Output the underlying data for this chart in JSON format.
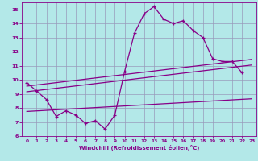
{
  "title": "",
  "xlabel": "Windchill (Refroidissement éolien,°C)",
  "background_color": "#b3e8e8",
  "line_color": "#880088",
  "xlim": [
    -0.5,
    23.5
  ],
  "ylim": [
    6,
    15.5
  ],
  "yticks": [
    6,
    7,
    8,
    9,
    10,
    11,
    12,
    13,
    14,
    15
  ],
  "xticks": [
    0,
    1,
    2,
    3,
    4,
    5,
    6,
    7,
    8,
    9,
    10,
    11,
    12,
    13,
    14,
    15,
    16,
    17,
    18,
    19,
    20,
    21,
    22,
    23
  ],
  "curve_x": [
    0,
    1,
    2,
    3,
    4,
    5,
    6,
    7,
    8,
    9,
    10,
    11,
    12,
    13,
    14,
    15,
    16,
    17,
    18,
    19,
    20,
    21,
    22
  ],
  "curve_y": [
    9.8,
    9.2,
    8.6,
    7.4,
    7.8,
    7.5,
    6.9,
    7.1,
    6.5,
    7.5,
    10.6,
    13.3,
    14.7,
    15.2,
    14.3,
    14.0,
    14.2,
    13.5,
    13.0,
    11.5,
    11.3,
    11.3,
    10.5
  ],
  "line1_x": [
    0,
    23
  ],
  "line1_y": [
    9.55,
    11.45
  ],
  "line2_x": [
    0,
    23
  ],
  "line2_y": [
    9.15,
    11.05
  ],
  "line3_x": [
    0,
    23
  ],
  "line3_y": [
    7.75,
    8.65
  ],
  "grid_color": "#9999bb",
  "xlabel_color": "#880088",
  "tick_color": "#880088",
  "spine_color": "#880088"
}
